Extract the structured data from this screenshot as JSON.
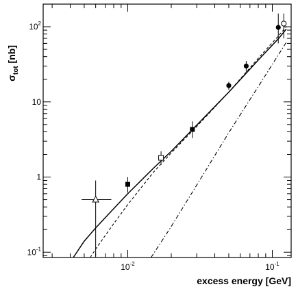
{
  "chart_data": {
    "type": "scatter",
    "title": "",
    "xlabel": "excess energy [GeV]",
    "ylabel": {
      "base": "σ",
      "sub": "tot",
      "unit": " [nb]"
    },
    "xscale": "log",
    "yscale": "log",
    "xlim": [
      0.0026,
      0.135
    ],
    "ylim": [
      0.085,
      200
    ],
    "grid": false,
    "legend": "none",
    "x_ticks": [
      {
        "value": 0.01,
        "base": "10",
        "exp": "-2"
      },
      {
        "value": 0.1,
        "base": "10",
        "exp": "-1"
      }
    ],
    "y_ticks": [
      {
        "value": 0.1,
        "label": "10",
        "exp": "-1"
      },
      {
        "value": 1,
        "label": "1",
        "exp": ""
      },
      {
        "value": 10,
        "label": "10",
        "exp": ""
      },
      {
        "value": 100,
        "label": "10",
        "exp": "2"
      }
    ],
    "points": [
      {
        "name": "open-triangle",
        "marker": "triangle-open",
        "x": 0.006,
        "y": 0.5,
        "xerr": [
          0.0048,
          0.0077
        ],
        "yerr": [
          0.09,
          0.9
        ]
      },
      {
        "name": "filled-square-1",
        "marker": "square-filled",
        "x": 0.01,
        "y": 0.8,
        "xerr": null,
        "yerr": [
          0.62,
          1.0
        ]
      },
      {
        "name": "open-square",
        "marker": "square-open",
        "x": 0.017,
        "y": 1.8,
        "xerr": null,
        "yerr": [
          1.45,
          2.2
        ]
      },
      {
        "name": "filled-square-2",
        "marker": "square-filled",
        "x": 0.028,
        "y": 4.3,
        "xerr": null,
        "yerr": [
          3.3,
          5.5
        ]
      },
      {
        "name": "filled-circle-1",
        "marker": "circle-filled",
        "x": 0.05,
        "y": 16.5,
        "xerr": null,
        "yerr": [
          14.5,
          18.5
        ]
      },
      {
        "name": "filled-circle-2",
        "marker": "circle-filled",
        "x": 0.066,
        "y": 30,
        "xerr": null,
        "yerr": [
          25,
          35
        ]
      },
      {
        "name": "filled-circle-3",
        "marker": "circle-filled",
        "x": 0.11,
        "y": 98,
        "xerr": null,
        "yerr": [
          60,
          150
        ]
      },
      {
        "name": "open-circle",
        "marker": "circle-open",
        "x": 0.12,
        "y": 110,
        "xerr": null,
        "yerr": [
          70,
          150
        ]
      }
    ],
    "series": [
      {
        "style": "solid",
        "x": [
          0.0042,
          0.005,
          0.006,
          0.008,
          0.01,
          0.015,
          0.02,
          0.03,
          0.05,
          0.08,
          0.11,
          0.125
        ],
        "y": [
          0.085,
          0.14,
          0.21,
          0.38,
          0.6,
          1.3,
          2.2,
          4.9,
          13.5,
          36,
          69,
          93
        ]
      },
      {
        "style": "dashed",
        "x": [
          0.0055,
          0.006,
          0.008,
          0.01,
          0.015,
          0.02,
          0.03,
          0.05,
          0.08,
          0.11,
          0.125
        ],
        "y": [
          0.085,
          0.11,
          0.24,
          0.43,
          1.15,
          2.1,
          4.7,
          13.5,
          38,
          75,
          100
        ]
      },
      {
        "style": "dashdot",
        "x": [
          0.0145,
          0.02,
          0.03,
          0.05,
          0.08,
          0.11,
          0.125
        ],
        "y": [
          0.085,
          0.22,
          0.78,
          3.9,
          16,
          42,
          62
        ]
      }
    ]
  }
}
